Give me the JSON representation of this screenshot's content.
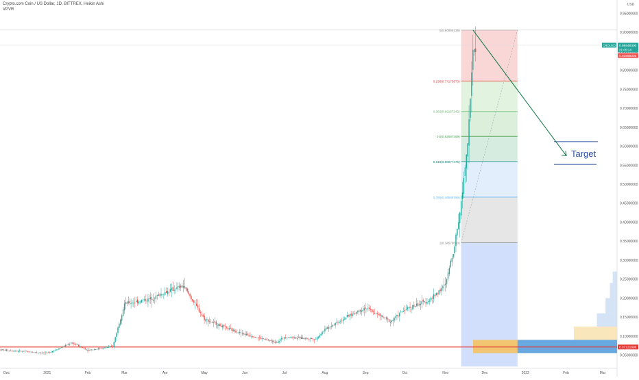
{
  "header": {
    "title": "Crypto.com Coin / US Dollar, 1D, BITTREX, Heikin Ashi",
    "indicator": "VPVR",
    "currency": "USD"
  },
  "symbol_tag": {
    "symbol": "CROUSD",
    "price": "0.86649300",
    "countdown": "21:05:14",
    "high_marker": "0.83868000",
    "support_marker": "0.07121896"
  },
  "annotation": {
    "target_label": "Target"
  },
  "colors": {
    "up": "#26a69a",
    "down": "#ef5350",
    "support": "#e53935",
    "arrow": "#1b7a4e",
    "target_text": "#2a4fa0",
    "short_zone": "#f6c1c1",
    "blue_zone": "#c9d8fb",
    "vp_orange": "#f5c263",
    "vp_blue": "#5fa8e6"
  },
  "chart_data": {
    "type": "candlestick",
    "title": "Crypto.com Coin / US Dollar, 1D, BITTREX, Heikin Ashi",
    "ylabel": "USD",
    "ylim": [
      0.015,
      0.985
    ],
    "y_ticks": [
      "0.05000000",
      "0.10000000",
      "0.15000000",
      "0.20000000",
      "0.25000000",
      "0.30000000",
      "0.35000000",
      "0.40000000",
      "0.45000000",
      "0.50000000",
      "0.55000000",
      "0.60000000",
      "0.65000000",
      "0.70000000",
      "0.75000000",
      "0.80000000",
      "0.85000000",
      "0.90000000",
      "0.95000000"
    ],
    "x_tick_labels": [
      "Dec",
      "2021",
      "Feb",
      "Mar",
      "Apr",
      "May",
      "Jun",
      "Jul",
      "Aug",
      "Sep",
      "Oct",
      "Nov",
      "Dec",
      "2022",
      "Feb",
      "Mar"
    ],
    "price_path": [
      {
        "x": "Nov 26 2020",
        "y": 0.064
      },
      {
        "x": "Jan 2021",
        "y": 0.055
      },
      {
        "x": "Jan 20 2021",
        "y": 0.082
      },
      {
        "x": "Feb 2021",
        "y": 0.063
      },
      {
        "x": "Feb 20 2021",
        "y": 0.072
      },
      {
        "x": "Mar 2021",
        "y": 0.185
      },
      {
        "x": "Mar 20 2021",
        "y": 0.197
      },
      {
        "x": "Apr 2021",
        "y": 0.215
      },
      {
        "x": "Apr 15 2021",
        "y": 0.232
      },
      {
        "x": "May 2021",
        "y": 0.145
      },
      {
        "x": "May 20 2021",
        "y": 0.118
      },
      {
        "x": "Jun 2021",
        "y": 0.105
      },
      {
        "x": "Jun 25 2021",
        "y": 0.083
      },
      {
        "x": "Jul 2021",
        "y": 0.098
      },
      {
        "x": "Jul 25 2021",
        "y": 0.092
      },
      {
        "x": "Aug 2021",
        "y": 0.118
      },
      {
        "x": "Aug 20 2021",
        "y": 0.155
      },
      {
        "x": "Sep 2021",
        "y": 0.175
      },
      {
        "x": "Sep 20 2021",
        "y": 0.138
      },
      {
        "x": "Oct 2021",
        "y": 0.17
      },
      {
        "x": "Oct 20 2021",
        "y": 0.195
      },
      {
        "x": "Nov 2021",
        "y": 0.235
      },
      {
        "x": "Nov 8 2021",
        "y": 0.34
      },
      {
        "x": "Nov 13 2021",
        "y": 0.45
      },
      {
        "x": "Nov 18 2021",
        "y": 0.62
      },
      {
        "x": "Nov 22 2021",
        "y": 0.84
      },
      {
        "x": "Nov 24 2021",
        "y": 0.866
      }
    ],
    "fibonacci_levels": [
      {
        "ratio": "0",
        "value": "0.90595138",
        "label": "0(0.90595138)",
        "color": "#888888"
      },
      {
        "ratio": "0.236",
        "value": "0.77175973",
        "label": "0.236(0.77175973)",
        "color": "#e53935"
      },
      {
        "ratio": "0.382",
        "value": "0.69157242",
        "label": "0.382(0.69157242)",
        "color": "#66bb6a"
      },
      {
        "ratio": "0.5",
        "value": "0.62587359",
        "label": "0.5(0.62587359)",
        "color": "#43a047"
      },
      {
        "ratio": "0.618",
        "value": "0.55977475",
        "label": "0.618(0.55977475)",
        "color": "#00897b"
      },
      {
        "ratio": "0.786",
        "value": "0.46586796",
        "label": "0.786(0.46586796)",
        "color": "#64b5f6"
      },
      {
        "ratio": "1",
        "value": "0.34579580",
        "label": "1(0.34579580)",
        "color": "#888888"
      }
    ],
    "support_level": 0.07121896,
    "target_projection": {
      "from": 0.906,
      "to": 0.575,
      "label": "Target"
    },
    "volume_profile": [
      {
        "low": 0.055,
        "high": 0.09,
        "volume": 1.0,
        "color": "#f5c263"
      },
      {
        "low": 0.09,
        "high": 0.125,
        "volume": 0.3,
        "color": "#f9e3b4"
      },
      {
        "low": 0.125,
        "high": 0.16,
        "volume": 0.14,
        "color": "#cfe0f5"
      },
      {
        "low": 0.16,
        "high": 0.2,
        "volume": 0.08,
        "color": "#cfe0f5"
      },
      {
        "low": 0.2,
        "high": 0.24,
        "volume": 0.05,
        "color": "#cfe0f5"
      },
      {
        "low": 0.24,
        "high": 0.27,
        "volume": 0.03,
        "color": "#cfe0f5"
      }
    ]
  }
}
